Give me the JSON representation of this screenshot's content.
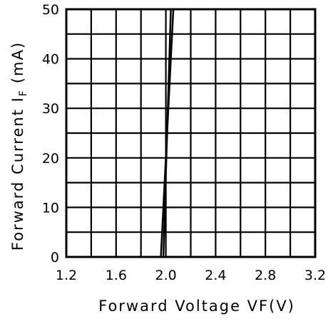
{
  "chart_data": {
    "type": "line",
    "title": "",
    "xlabel": "Forward Voltage VF(V)",
    "ylabel": "Forward Current I",
    "ylabel_subscript": "F",
    "ylabel_unit": "(mA)",
    "xlim": [
      1.2,
      3.2
    ],
    "ylim": [
      0,
      50
    ],
    "x_ticks": [
      "1.2",
      "1.6",
      "2.0",
      "2.4",
      "2.8",
      "3.2"
    ],
    "y_ticks": [
      "0",
      "10",
      "20",
      "30",
      "40",
      "50"
    ],
    "grid": true,
    "legend": "none",
    "series": [
      {
        "x": [
          1.96,
          2.06
        ],
        "y": [
          0,
          50
        ]
      },
      {
        "x": [
          1.98,
          2.04
        ],
        "y": [
          0,
          50
        ]
      }
    ]
  }
}
